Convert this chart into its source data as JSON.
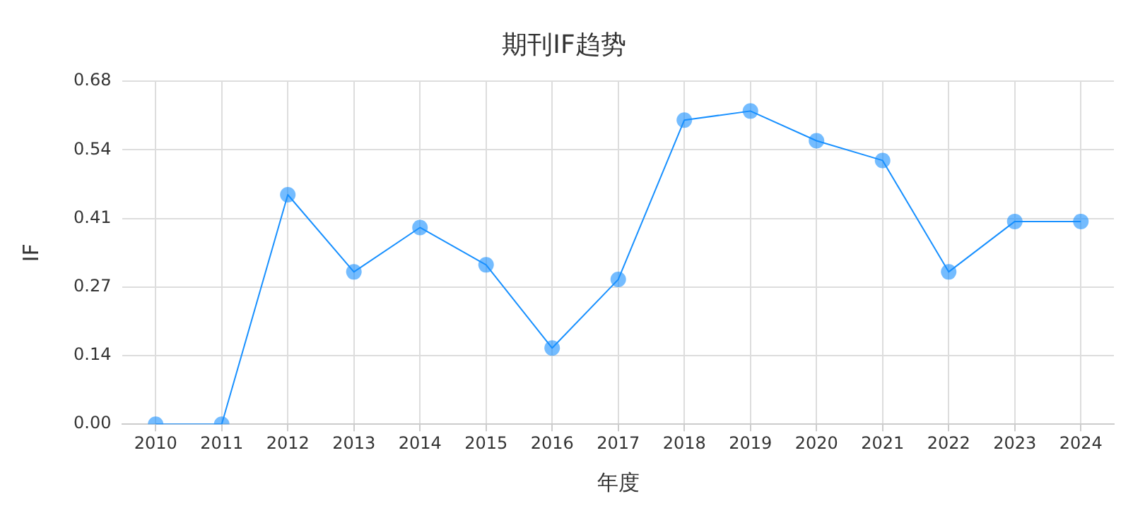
{
  "chart_data": {
    "type": "line",
    "title": "期刊IF趋势",
    "xlabel": "年度",
    "ylabel": "IF",
    "categories": [
      "2010",
      "2011",
      "2012",
      "2013",
      "2014",
      "2015",
      "2016",
      "2017",
      "2018",
      "2019",
      "2020",
      "2021",
      "2022",
      "2023",
      "2024"
    ],
    "series": [
      {
        "color": "#1890ff",
        "values": [
          0,
          0,
          0.455,
          0.302,
          0.39,
          0.316,
          0.151,
          0.287,
          0.603,
          0.621,
          0.562,
          0.523,
          0.302,
          0.402,
          0.402
        ]
      }
    ],
    "ylim": [
      0,
      0.68
    ],
    "yticks": [
      {
        "value": 0,
        "label": "0.00"
      },
      {
        "value": 0.136,
        "label": "0.14"
      },
      {
        "value": 0.272,
        "label": "0.27"
      },
      {
        "value": 0.408,
        "label": "0.41"
      },
      {
        "value": 0.544,
        "label": "0.54"
      },
      0.68
    ],
    "grid": true,
    "legend": false,
    "marker": "circle",
    "line_style": "solid"
  }
}
